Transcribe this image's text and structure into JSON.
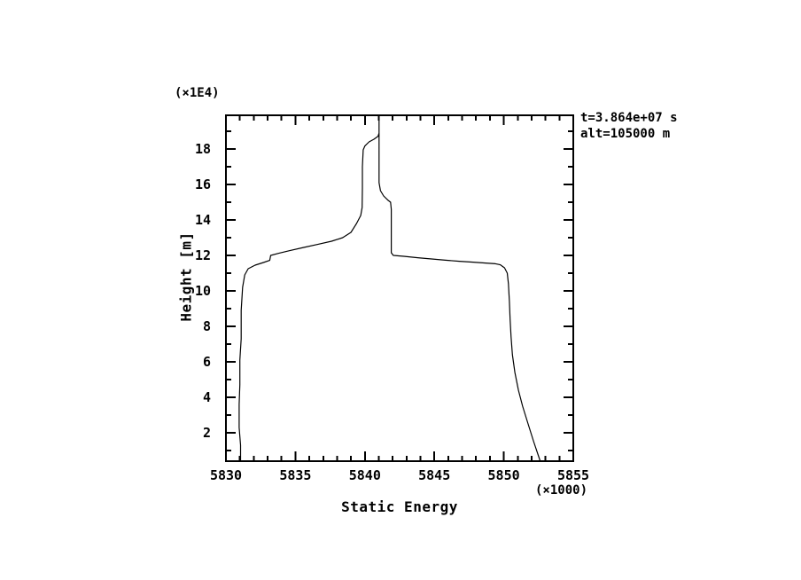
{
  "figure": {
    "background": "#ffffff",
    "foreground": "#000000"
  },
  "chart_data": {
    "type": "line",
    "title": "",
    "xlabel": "Static Energy",
    "ylabel": "Height [m]",
    "x_scale_note": "(×1000)",
    "y_scale_note": "(×1E4)",
    "annotations": [
      "t=3.864e+07 s",
      "alt=105000 m"
    ],
    "xlim": [
      5830,
      5855
    ],
    "ylim": [
      0.4,
      19.9
    ],
    "x_major_ticks": [
      5830,
      5835,
      5840,
      5845,
      5850,
      5855
    ],
    "x_minor_step": 1,
    "y_major_ticks": [
      2,
      4,
      6,
      8,
      10,
      12,
      14,
      16,
      18
    ],
    "y_minor_step": 1,
    "grid": false,
    "axis_color": "#000000",
    "series": [
      {
        "name": "static-energy-profile",
        "color": "#000000",
        "points": [
          [
            5831.05,
            0.4
          ],
          [
            5831.05,
            1.3
          ],
          [
            5830.95,
            2.3
          ],
          [
            5830.95,
            3.6
          ],
          [
            5831.0,
            4.7
          ],
          [
            5831.0,
            6.1
          ],
          [
            5831.1,
            7.3
          ],
          [
            5831.1,
            8.9
          ],
          [
            5831.2,
            10.2
          ],
          [
            5831.35,
            10.9
          ],
          [
            5831.6,
            11.25
          ],
          [
            5832.1,
            11.45
          ],
          [
            5832.7,
            11.6
          ],
          [
            5833.15,
            11.72
          ],
          [
            5833.22,
            12.0
          ],
          [
            5833.8,
            12.12
          ],
          [
            5834.6,
            12.27
          ],
          [
            5835.6,
            12.45
          ],
          [
            5836.6,
            12.62
          ],
          [
            5837.6,
            12.8
          ],
          [
            5838.4,
            13.0
          ],
          [
            5839.0,
            13.3
          ],
          [
            5839.4,
            13.8
          ],
          [
            5839.7,
            14.25
          ],
          [
            5839.8,
            14.7
          ],
          [
            5839.82,
            15.8
          ],
          [
            5839.82,
            17.0
          ],
          [
            5839.88,
            17.95
          ],
          [
            5840.0,
            18.17
          ],
          [
            5840.3,
            18.4
          ],
          [
            5840.65,
            18.55
          ],
          [
            5840.95,
            18.72
          ],
          [
            5841.02,
            18.9
          ],
          [
            5841.02,
            19.9
          ],
          [
            5841.02,
            16.1
          ],
          [
            5841.12,
            15.65
          ],
          [
            5841.35,
            15.35
          ],
          [
            5841.65,
            15.12
          ],
          [
            5841.85,
            15.0
          ],
          [
            5841.9,
            14.6
          ],
          [
            5841.9,
            13.4
          ],
          [
            5841.9,
            12.15
          ],
          [
            5842.05,
            12.0
          ],
          [
            5842.8,
            11.95
          ],
          [
            5843.8,
            11.87
          ],
          [
            5844.8,
            11.8
          ],
          [
            5845.8,
            11.73
          ],
          [
            5846.8,
            11.67
          ],
          [
            5847.8,
            11.62
          ],
          [
            5848.7,
            11.57
          ],
          [
            5849.4,
            11.53
          ],
          [
            5849.75,
            11.47
          ],
          [
            5850.05,
            11.3
          ],
          [
            5850.25,
            11.0
          ],
          [
            5850.33,
            10.4
          ],
          [
            5850.4,
            9.4
          ],
          [
            5850.45,
            8.4
          ],
          [
            5850.52,
            7.4
          ],
          [
            5850.62,
            6.4
          ],
          [
            5850.8,
            5.4
          ],
          [
            5851.05,
            4.4
          ],
          [
            5851.35,
            3.5
          ],
          [
            5851.75,
            2.5
          ],
          [
            5852.15,
            1.5
          ],
          [
            5852.45,
            0.8
          ],
          [
            5852.62,
            0.4
          ]
        ]
      }
    ]
  }
}
